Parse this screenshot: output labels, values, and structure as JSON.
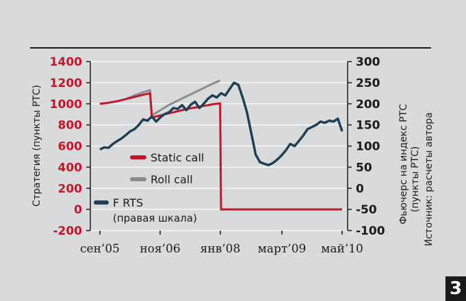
{
  "badge": "3",
  "colors": {
    "background": "#d8dadc",
    "static_call": "#c3162b",
    "roll_call": "#8c8c8c",
    "f_rts": "#1e3f55",
    "left_axis_text": "#c3162b",
    "axis": "#1a1a1a"
  },
  "chart_data": {
    "type": "line",
    "x_ticks": [
      "сен’05",
      "ноя’06",
      "янв’08",
      "март’09",
      "май’10"
    ],
    "left_axis": {
      "label": "Стратегия (пункты РТС)",
      "ticks": [
        "1400",
        "1200",
        "1000",
        "800",
        "600",
        "400",
        "200",
        "0",
        "-200"
      ],
      "ylim": [
        -200,
        1400
      ]
    },
    "right_axis": {
      "label_line1": "Фьючерс на индекс РТС",
      "label_line2": "(пункты РТС)",
      "ticks": [
        "300",
        "250",
        "200",
        "150",
        "100",
        "50",
        "0",
        "-50",
        "-100"
      ],
      "ylim": [
        -100,
        300
      ]
    },
    "source": "Источник: расчеты автора",
    "grid": true,
    "legend_position": "bottom-left",
    "series": [
      {
        "name": "Static call",
        "axis": "left",
        "points": [
          [
            0,
            1000
          ],
          [
            0.5,
            1010
          ],
          [
            1.0,
            1025
          ],
          [
            1.5,
            1045
          ],
          [
            2.0,
            1065
          ],
          [
            2.5,
            1085
          ],
          [
            2.9,
            1100
          ],
          [
            3.0,
            870
          ],
          [
            3.5,
            890
          ],
          [
            4.0,
            910
          ],
          [
            4.5,
            930
          ],
          [
            5.0,
            950
          ],
          [
            5.5,
            965
          ],
          [
            6.0,
            980
          ],
          [
            6.5,
            995
          ],
          [
            6.95,
            1005
          ],
          [
            7.0,
            0
          ],
          [
            8.0,
            0
          ],
          [
            9.0,
            0
          ],
          [
            10.0,
            0
          ],
          [
            11.0,
            0
          ],
          [
            12.0,
            0
          ],
          [
            13.0,
            0
          ],
          [
            14.0,
            0
          ]
        ]
      },
      {
        "name": "Roll call",
        "axis": "left",
        "points": [
          [
            1.5,
            1045
          ],
          [
            2.0,
            1080
          ],
          [
            2.5,
            1110
          ],
          [
            2.9,
            1130
          ],
          [
            3.0,
            890
          ],
          [
            3.5,
            940
          ],
          [
            4.0,
            990
          ],
          [
            4.5,
            1030
          ],
          [
            5.0,
            1070
          ],
          [
            5.5,
            1110
          ],
          [
            6.0,
            1150
          ],
          [
            6.5,
            1190
          ],
          [
            6.95,
            1220
          ]
        ]
      },
      {
        "name": "F RTS",
        "legend_sub": "(правая шкала)",
        "axis": "right",
        "points": [
          [
            0,
            92
          ],
          [
            0.25,
            97
          ],
          [
            0.5,
            96
          ],
          [
            0.75,
            105
          ],
          [
            1.0,
            112
          ],
          [
            1.25,
            118
          ],
          [
            1.5,
            126
          ],
          [
            1.75,
            135
          ],
          [
            2.0,
            140
          ],
          [
            2.25,
            150
          ],
          [
            2.5,
            163
          ],
          [
            2.75,
            160
          ],
          [
            3.0,
            170
          ],
          [
            3.25,
            158
          ],
          [
            3.5,
            168
          ],
          [
            3.75,
            176
          ],
          [
            4.0,
            180
          ],
          [
            4.25,
            190
          ],
          [
            4.5,
            188
          ],
          [
            4.75,
            197
          ],
          [
            5.0,
            185
          ],
          [
            5.25,
            198
          ],
          [
            5.5,
            205
          ],
          [
            5.75,
            190
          ],
          [
            6.0,
            200
          ],
          [
            6.25,
            212
          ],
          [
            6.5,
            220
          ],
          [
            6.75,
            215
          ],
          [
            7.0,
            225
          ],
          [
            7.25,
            220
          ],
          [
            7.5,
            235
          ],
          [
            7.75,
            250
          ],
          [
            8.0,
            245
          ],
          [
            8.25,
            215
          ],
          [
            8.5,
            180
          ],
          [
            8.75,
            130
          ],
          [
            9.0,
            80
          ],
          [
            9.25,
            62
          ],
          [
            9.5,
            58
          ],
          [
            9.75,
            55
          ],
          [
            10.0,
            60
          ],
          [
            10.25,
            68
          ],
          [
            10.5,
            78
          ],
          [
            10.75,
            90
          ],
          [
            11.0,
            105
          ],
          [
            11.25,
            100
          ],
          [
            11.5,
            112
          ],
          [
            11.75,
            125
          ],
          [
            12.0,
            140
          ],
          [
            12.25,
            145
          ],
          [
            12.5,
            150
          ],
          [
            12.75,
            158
          ],
          [
            13.0,
            155
          ],
          [
            13.25,
            160
          ],
          [
            13.5,
            158
          ],
          [
            13.75,
            165
          ],
          [
            14.0,
            135
          ]
        ]
      }
    ]
  }
}
